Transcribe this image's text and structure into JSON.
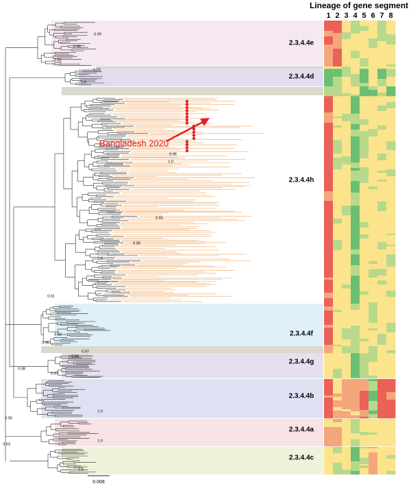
{
  "heatmap": {
    "title": "Lineage of gene segment",
    "columns": [
      "1",
      "2",
      "3",
      "4",
      "5",
      "6",
      "7",
      "8"
    ]
  },
  "clades": [
    {
      "label": "2.3.4.4e"
    },
    {
      "label": "2.3.4.4d"
    },
    {
      "label": "2.3.4.4h"
    },
    {
      "label": "2.3.4.4f"
    },
    {
      "label": "2.3.4.4g"
    },
    {
      "label": "2.3.4.4b"
    },
    {
      "label": "2.3.4.4a"
    },
    {
      "label": "2.3.4.4c"
    }
  ],
  "annotation": "Bangladesh 2020",
  "support_values": [
    "0.99",
    "0.96",
    "0.62",
    "0.93",
    "1.0",
    "0.96",
    "1.0",
    "0.65",
    "0.58",
    "1.0",
    "0.61",
    "0.62",
    "0.96",
    "0.97",
    "0.99",
    "0.98",
    "0.97",
    "1.0",
    "0.56",
    "1.0",
    "0.63",
    "1.0"
  ],
  "scale_bar": "0.008"
}
